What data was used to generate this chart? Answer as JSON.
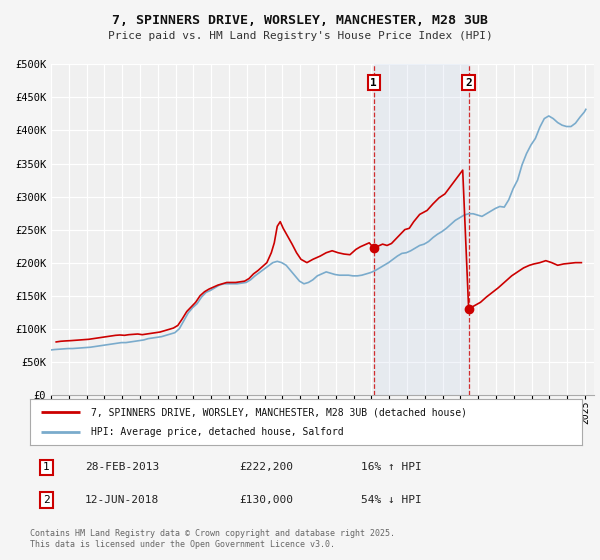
{
  "title": "7, SPINNERS DRIVE, WORSLEY, MANCHESTER, M28 3UB",
  "subtitle": "Price paid vs. HM Land Registry's House Price Index (HPI)",
  "background_color": "#f5f5f5",
  "plot_bg_color": "#f0f0f0",
  "grid_color": "#ffffff",
  "red_color": "#cc0000",
  "blue_color": "#7aabcc",
  "vline_color": "#cc0000",
  "span_color": "#ccd9ee",
  "legend_label_red": "7, SPINNERS DRIVE, WORSLEY, MANCHESTER, M28 3UB (detached house)",
  "legend_label_blue": "HPI: Average price, detached house, Salford",
  "marker1_price": 222200,
  "marker1_hpi": 192000,
  "marker1_year": 2013,
  "marker1_month": 2,
  "marker1_text": "28-FEB-2013",
  "marker1_amount": "£222,200",
  "marker1_pct": "16% ↑ HPI",
  "marker2_price": 130000,
  "marker2_hpi": 274000,
  "marker2_year": 2018,
  "marker2_month": 6,
  "marker2_text": "12-JUN-2018",
  "marker2_amount": "£130,000",
  "marker2_pct": "54% ↓ HPI",
  "ylim": [
    0,
    500000
  ],
  "yticks": [
    0,
    50000,
    100000,
    150000,
    200000,
    250000,
    300000,
    350000,
    400000,
    450000,
    500000
  ],
  "ytick_labels": [
    "£0",
    "£50K",
    "£100K",
    "£150K",
    "£200K",
    "£250K",
    "£300K",
    "£350K",
    "£400K",
    "£450K",
    "£500K"
  ],
  "copyright_text": "Contains HM Land Registry data © Crown copyright and database right 2025.\nThis data is licensed under the Open Government Licence v3.0.",
  "hpi_data": [
    [
      1995,
      1,
      68000
    ],
    [
      1995,
      3,
      68500
    ],
    [
      1995,
      6,
      69000
    ],
    [
      1995,
      9,
      69500
    ],
    [
      1995,
      12,
      70000
    ],
    [
      1996,
      3,
      70000
    ],
    [
      1996,
      6,
      70500
    ],
    [
      1996,
      9,
      71000
    ],
    [
      1996,
      12,
      71500
    ],
    [
      1997,
      3,
      72000
    ],
    [
      1997,
      6,
      73000
    ],
    [
      1997,
      9,
      74000
    ],
    [
      1997,
      12,
      75000
    ],
    [
      1998,
      3,
      76000
    ],
    [
      1998,
      6,
      77000
    ],
    [
      1998,
      9,
      78000
    ],
    [
      1998,
      12,
      79000
    ],
    [
      1999,
      3,
      79000
    ],
    [
      1999,
      6,
      80000
    ],
    [
      1999,
      9,
      81000
    ],
    [
      1999,
      12,
      82000
    ],
    [
      2000,
      3,
      83000
    ],
    [
      2000,
      6,
      85000
    ],
    [
      2000,
      9,
      86000
    ],
    [
      2000,
      12,
      87000
    ],
    [
      2001,
      3,
      88000
    ],
    [
      2001,
      6,
      90000
    ],
    [
      2001,
      9,
      92000
    ],
    [
      2001,
      12,
      94000
    ],
    [
      2002,
      3,
      100000
    ],
    [
      2002,
      6,
      112000
    ],
    [
      2002,
      9,
      124000
    ],
    [
      2002,
      12,
      132000
    ],
    [
      2003,
      3,
      138000
    ],
    [
      2003,
      6,
      148000
    ],
    [
      2003,
      9,
      155000
    ],
    [
      2003,
      12,
      158000
    ],
    [
      2004,
      3,
      162000
    ],
    [
      2004,
      6,
      166000
    ],
    [
      2004,
      9,
      168000
    ],
    [
      2004,
      12,
      168000
    ],
    [
      2005,
      3,
      168000
    ],
    [
      2005,
      6,
      168000
    ],
    [
      2005,
      9,
      169000
    ],
    [
      2005,
      12,
      170000
    ],
    [
      2006,
      3,
      174000
    ],
    [
      2006,
      6,
      180000
    ],
    [
      2006,
      9,
      185000
    ],
    [
      2006,
      12,
      190000
    ],
    [
      2007,
      3,
      195000
    ],
    [
      2007,
      6,
      200000
    ],
    [
      2007,
      9,
      202000
    ],
    [
      2007,
      12,
      200000
    ],
    [
      2008,
      3,
      196000
    ],
    [
      2008,
      6,
      188000
    ],
    [
      2008,
      9,
      180000
    ],
    [
      2008,
      12,
      172000
    ],
    [
      2009,
      3,
      168000
    ],
    [
      2009,
      6,
      170000
    ],
    [
      2009,
      9,
      174000
    ],
    [
      2009,
      12,
      180000
    ],
    [
      2010,
      3,
      183000
    ],
    [
      2010,
      6,
      186000
    ],
    [
      2010,
      9,
      184000
    ],
    [
      2010,
      12,
      182000
    ],
    [
      2011,
      3,
      181000
    ],
    [
      2011,
      6,
      181000
    ],
    [
      2011,
      9,
      181000
    ],
    [
      2011,
      12,
      180000
    ],
    [
      2012,
      3,
      180000
    ],
    [
      2012,
      6,
      181000
    ],
    [
      2012,
      9,
      183000
    ],
    [
      2012,
      12,
      185000
    ],
    [
      2013,
      3,
      188000
    ],
    [
      2013,
      6,
      192000
    ],
    [
      2013,
      9,
      196000
    ],
    [
      2013,
      12,
      200000
    ],
    [
      2014,
      3,
      205000
    ],
    [
      2014,
      6,
      210000
    ],
    [
      2014,
      9,
      214000
    ],
    [
      2014,
      12,
      215000
    ],
    [
      2015,
      3,
      218000
    ],
    [
      2015,
      6,
      222000
    ],
    [
      2015,
      9,
      226000
    ],
    [
      2015,
      12,
      228000
    ],
    [
      2016,
      3,
      232000
    ],
    [
      2016,
      6,
      238000
    ],
    [
      2016,
      9,
      243000
    ],
    [
      2016,
      12,
      247000
    ],
    [
      2017,
      3,
      252000
    ],
    [
      2017,
      6,
      258000
    ],
    [
      2017,
      9,
      264000
    ],
    [
      2017,
      12,
      268000
    ],
    [
      2018,
      3,
      272000
    ],
    [
      2018,
      6,
      274000
    ],
    [
      2018,
      9,
      274000
    ],
    [
      2018,
      12,
      272000
    ],
    [
      2019,
      3,
      270000
    ],
    [
      2019,
      6,
      274000
    ],
    [
      2019,
      9,
      278000
    ],
    [
      2019,
      12,
      282000
    ],
    [
      2020,
      3,
      285000
    ],
    [
      2020,
      6,
      284000
    ],
    [
      2020,
      9,
      295000
    ],
    [
      2020,
      12,
      312000
    ],
    [
      2021,
      3,
      325000
    ],
    [
      2021,
      6,
      348000
    ],
    [
      2021,
      9,
      365000
    ],
    [
      2021,
      12,
      378000
    ],
    [
      2022,
      3,
      388000
    ],
    [
      2022,
      6,
      405000
    ],
    [
      2022,
      9,
      418000
    ],
    [
      2022,
      12,
      422000
    ],
    [
      2023,
      3,
      418000
    ],
    [
      2023,
      6,
      412000
    ],
    [
      2023,
      9,
      408000
    ],
    [
      2023,
      12,
      406000
    ],
    [
      2024,
      3,
      406000
    ],
    [
      2024,
      6,
      411000
    ],
    [
      2024,
      9,
      420000
    ],
    [
      2024,
      12,
      428000
    ],
    [
      2025,
      1,
      432000
    ]
  ],
  "price_paid_data": [
    [
      1995,
      4,
      80000
    ],
    [
      1995,
      7,
      81000
    ],
    [
      1995,
      10,
      81500
    ],
    [
      1996,
      2,
      82000
    ],
    [
      1996,
      5,
      82500
    ],
    [
      1996,
      8,
      83000
    ],
    [
      1996,
      11,
      83500
    ],
    [
      1997,
      2,
      84000
    ],
    [
      1997,
      5,
      85000
    ],
    [
      1997,
      8,
      86000
    ],
    [
      1997,
      11,
      87000
    ],
    [
      1998,
      2,
      88000
    ],
    [
      1998,
      5,
      89000
    ],
    [
      1998,
      8,
      90000
    ],
    [
      1998,
      11,
      90500
    ],
    [
      1999,
      2,
      90000
    ],
    [
      1999,
      5,
      91000
    ],
    [
      1999,
      8,
      91500
    ],
    [
      1999,
      11,
      92000
    ],
    [
      2000,
      2,
      91000
    ],
    [
      2000,
      5,
      92000
    ],
    [
      2000,
      8,
      93000
    ],
    [
      2000,
      11,
      94000
    ],
    [
      2001,
      2,
      95000
    ],
    [
      2001,
      5,
      97000
    ],
    [
      2001,
      8,
      99000
    ],
    [
      2001,
      11,
      101000
    ],
    [
      2002,
      2,
      105000
    ],
    [
      2002,
      5,
      115000
    ],
    [
      2002,
      8,
      126000
    ],
    [
      2002,
      11,
      133000
    ],
    [
      2003,
      2,
      140000
    ],
    [
      2003,
      5,
      150000
    ],
    [
      2003,
      8,
      156000
    ],
    [
      2003,
      11,
      160000
    ],
    [
      2004,
      2,
      163000
    ],
    [
      2004,
      5,
      166000
    ],
    [
      2004,
      8,
      168000
    ],
    [
      2004,
      11,
      170000
    ],
    [
      2005,
      2,
      170000
    ],
    [
      2005,
      5,
      170000
    ],
    [
      2005,
      8,
      171000
    ],
    [
      2005,
      11,
      172000
    ],
    [
      2006,
      2,
      176000
    ],
    [
      2006,
      5,
      183000
    ],
    [
      2006,
      8,
      188000
    ],
    [
      2006,
      11,
      194000
    ],
    [
      2007,
      2,
      200000
    ],
    [
      2007,
      5,
      215000
    ],
    [
      2007,
      7,
      230000
    ],
    [
      2007,
      9,
      255000
    ],
    [
      2007,
      11,
      262000
    ],
    [
      2008,
      1,
      252000
    ],
    [
      2008,
      4,
      240000
    ],
    [
      2008,
      7,
      228000
    ],
    [
      2008,
      10,
      215000
    ],
    [
      2009,
      1,
      205000
    ],
    [
      2009,
      5,
      200000
    ],
    [
      2009,
      9,
      205000
    ],
    [
      2010,
      2,
      210000
    ],
    [
      2010,
      6,
      215000
    ],
    [
      2010,
      10,
      218000
    ],
    [
      2011,
      2,
      215000
    ],
    [
      2011,
      6,
      213000
    ],
    [
      2011,
      10,
      212000
    ],
    [
      2012,
      2,
      220000
    ],
    [
      2012,
      5,
      224000
    ],
    [
      2012,
      8,
      227000
    ],
    [
      2012,
      11,
      230000
    ],
    [
      2013,
      2,
      222200
    ],
    [
      2013,
      5,
      225000
    ],
    [
      2013,
      8,
      228000
    ],
    [
      2013,
      11,
      226000
    ],
    [
      2014,
      2,
      229000
    ],
    [
      2014,
      5,
      236000
    ],
    [
      2014,
      8,
      243000
    ],
    [
      2014,
      11,
      250000
    ],
    [
      2015,
      2,
      252000
    ],
    [
      2015,
      5,
      262000
    ],
    [
      2015,
      9,
      273000
    ],
    [
      2016,
      2,
      279000
    ],
    [
      2016,
      6,
      289000
    ],
    [
      2016,
      10,
      298000
    ],
    [
      2017,
      2,
      304000
    ],
    [
      2017,
      6,
      316000
    ],
    [
      2017,
      10,
      328000
    ],
    [
      2018,
      2,
      340000
    ],
    [
      2018,
      6,
      130000
    ],
    [
      2019,
      2,
      140000
    ],
    [
      2019,
      6,
      148000
    ],
    [
      2019,
      10,
      155000
    ],
    [
      2020,
      2,
      162000
    ],
    [
      2020,
      7,
      172000
    ],
    [
      2020,
      11,
      180000
    ],
    [
      2021,
      3,
      186000
    ],
    [
      2021,
      7,
      192000
    ],
    [
      2021,
      11,
      196000
    ],
    [
      2022,
      2,
      198000
    ],
    [
      2022,
      6,
      200000
    ],
    [
      2022,
      10,
      203000
    ],
    [
      2023,
      2,
      200000
    ],
    [
      2023,
      6,
      196000
    ],
    [
      2023,
      10,
      198000
    ],
    [
      2024,
      2,
      199000
    ],
    [
      2024,
      6,
      200000
    ],
    [
      2024,
      10,
      200000
    ]
  ]
}
